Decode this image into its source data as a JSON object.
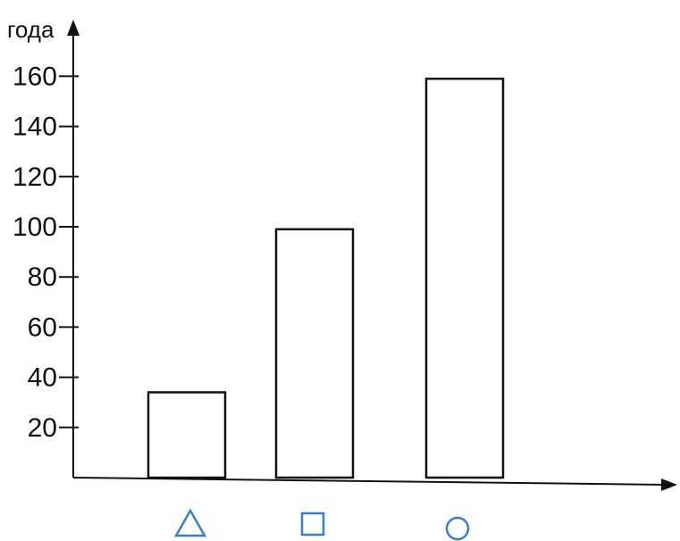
{
  "chart_data": {
    "type": "bar",
    "title": "",
    "ylabel": "года",
    "xlabel": "",
    "ylim": [
      0,
      170
    ],
    "yticks": [
      20,
      40,
      60,
      80,
      100,
      120,
      140,
      160
    ],
    "categories": [
      "triangle",
      "square",
      "circle"
    ],
    "values": [
      34,
      99,
      159
    ],
    "grid": false,
    "legend": "none"
  },
  "colors": {
    "axis": "#111111",
    "bar_stroke": "#111111",
    "bar_fill": "#ffffff",
    "category_icon": "#3a7fc4"
  },
  "icons": [
    "triangle-icon",
    "square-icon",
    "circle-icon"
  ]
}
